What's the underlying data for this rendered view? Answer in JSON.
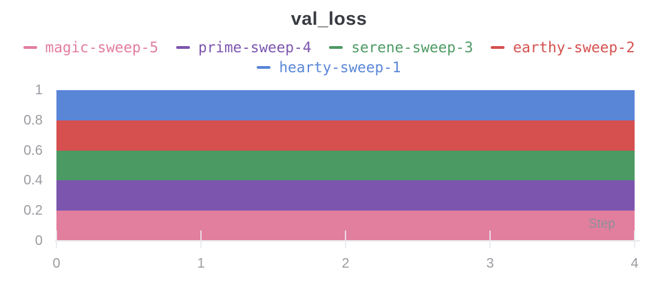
{
  "panel": {
    "title": "val_loss"
  },
  "legend": {
    "rows": [
      [
        {
          "label": "magic-sweep-5",
          "color": "#e27e9e"
        },
        {
          "label": "prime-sweep-4",
          "color": "#7c55ae"
        },
        {
          "label": "serene-sweep-3",
          "color": "#4c9a63"
        },
        {
          "label": "earthy-sweep-2",
          "color": "#d5504f"
        }
      ],
      [
        {
          "label": "hearty-sweep-1",
          "color": "#5a86d8"
        }
      ]
    ]
  },
  "chart_data": {
    "type": "area",
    "title": "val_loss",
    "xlabel": "Step",
    "ylabel": "",
    "x": [
      0,
      1,
      2,
      3,
      4
    ],
    "series": [
      {
        "name": "hearty-sweep-1",
        "color": "#5a86d8",
        "values": [
          1.0,
          1.0,
          1.0,
          1.0,
          1.0
        ]
      },
      {
        "name": "earthy-sweep-2",
        "color": "#d5504f",
        "values": [
          0.8,
          0.8,
          0.8,
          0.8,
          0.8
        ]
      },
      {
        "name": "serene-sweep-3",
        "color": "#4c9a63",
        "values": [
          0.6,
          0.6,
          0.6,
          0.6,
          0.6
        ]
      },
      {
        "name": "prime-sweep-4",
        "color": "#7c55ae",
        "values": [
          0.4,
          0.4,
          0.4,
          0.4,
          0.4
        ]
      },
      {
        "name": "magic-sweep-5",
        "color": "#e27e9e",
        "values": [
          0.2,
          0.2,
          0.2,
          0.2,
          0.2
        ]
      }
    ],
    "xlim": [
      0,
      4
    ],
    "ylim": [
      0,
      1
    ],
    "x_ticks": [
      "0",
      "1",
      "2",
      "3",
      "4"
    ],
    "y_ticks": [
      "0",
      "0.2",
      "0.4",
      "0.6",
      "0.8",
      "1"
    ],
    "grid": "x-ticks-only",
    "legend_position": "top",
    "notes": "constant-value runs rendered as solid stacked-looking area fills"
  },
  "colors": {
    "title_text": "#373a40",
    "tick_text": "#9b9ca1",
    "axis_line": "#e8e9ec",
    "step_label_text": "#8e9095",
    "background": "#ffffff"
  }
}
